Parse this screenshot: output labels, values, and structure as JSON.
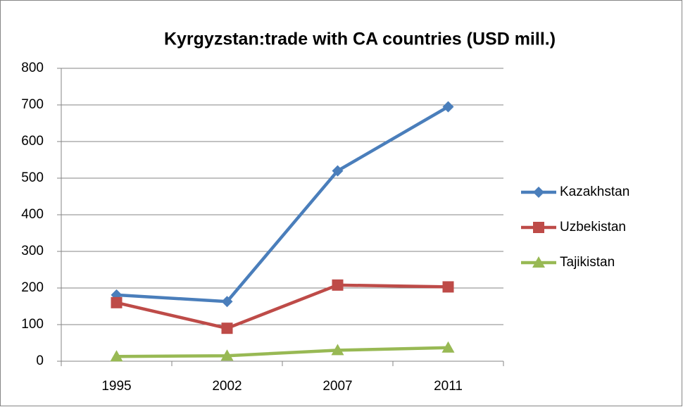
{
  "chart_data": {
    "type": "line",
    "title": "Kyrgyzstan:trade with CA countries (USD mill.)",
    "categories": [
      "1995",
      "2002",
      "2007",
      "2011"
    ],
    "series": [
      {
        "name": "Kazakhstan",
        "color": "#4a7ebb",
        "marker": "diamond",
        "values": [
          181,
          163,
          520,
          695
        ]
      },
      {
        "name": "Uzbekistan",
        "color": "#be4b48",
        "marker": "square",
        "values": [
          160,
          90,
          208,
          203
        ]
      },
      {
        "name": "Tajikistan",
        "color": "#98b954",
        "marker": "triangle",
        "values": [
          13,
          15,
          30,
          37
        ]
      }
    ],
    "ylim": [
      0,
      800
    ],
    "yticks": [
      0,
      100,
      200,
      300,
      400,
      500,
      600,
      700,
      800
    ],
    "grid": true,
    "legend": "right"
  }
}
